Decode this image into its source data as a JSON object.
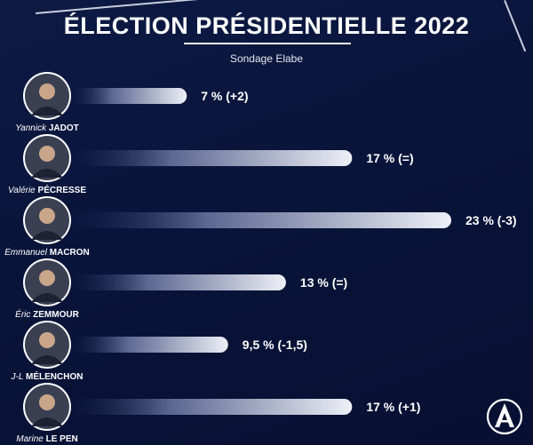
{
  "header": {
    "title": "ÉLECTION PRÉSIDENTIELLE 2022",
    "subtitle": "Sondage Elabe"
  },
  "chart_data": {
    "type": "bar",
    "orientation": "horizontal",
    "title": "ÉLECTION PRÉSIDENTIELLE 2022",
    "subtitle": "Sondage Elabe",
    "categories": [
      {
        "first": "Yannick",
        "last": "JADOT"
      },
      {
        "first": "Valérie",
        "last": "PÉCRESSE"
      },
      {
        "first": "Emmanuel",
        "last": "MACRON"
      },
      {
        "first": "Éric",
        "last": "ZEMMOUR"
      },
      {
        "first": "J-L",
        "last": "MÉLENCHON"
      },
      {
        "first": "Marine",
        "last": "LE PEN"
      }
    ],
    "values": [
      7,
      17,
      23,
      13,
      9.5,
      17
    ],
    "value_labels": [
      "7 % (+2)",
      "17 % (=)",
      "23 % (-3)",
      "13 % (=)",
      "9,5 % (-1,5)",
      "17 % (+1)"
    ],
    "xlim": [
      0,
      23
    ],
    "xlabel": "",
    "ylabel": "",
    "grid": false,
    "legend": "none"
  },
  "colors": {
    "background": "#0b173f",
    "bar_start": "#0b173f",
    "bar_end": "#eef0f7",
    "text": "#ffffff"
  },
  "logo": {
    "icon": "a-monogram-icon"
  }
}
